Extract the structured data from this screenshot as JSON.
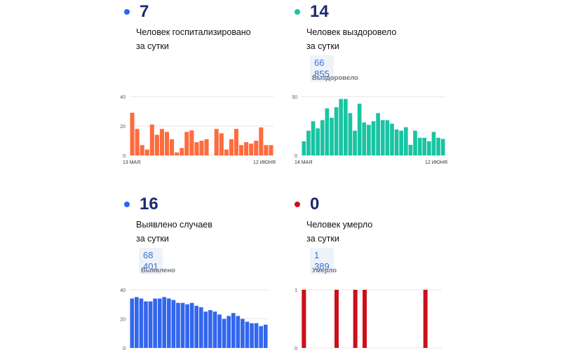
{
  "panels": [
    {
      "id": "hospitalized",
      "number": "7",
      "label_line1": "Человек госпитализировано",
      "label_line2": "за сутки",
      "accent": "#ff6b3d",
      "dot_color": "#2962ff",
      "total": "",
      "total_label": ""
    },
    {
      "id": "recovered",
      "number": "14",
      "label_line1": "Человек выздоровело",
      "label_line2": "за сутки",
      "accent": "#19c4a2",
      "dot_color": "#19c4a2",
      "total": "66 855",
      "total_label": "Выздоровело"
    },
    {
      "id": "detected",
      "number": "16",
      "label_line1": "Выявлено случаев",
      "label_line2": "за сутки",
      "accent": "#3366ee",
      "dot_color": "#2962ff",
      "total": "68 401",
      "total_label": "Выявлено"
    },
    {
      "id": "died",
      "number": "0",
      "label_line1": "Человек умерло",
      "label_line2": "за сутки",
      "accent": "#cc0f1a",
      "dot_color": "#cc0f1a",
      "total": "1 389",
      "total_label": "Умерло"
    }
  ],
  "chart_data": [
    {
      "type": "bar",
      "series_of": "hospitalized",
      "ylim": [
        0,
        40
      ],
      "yticks": [
        "0",
        "20",
        "40"
      ],
      "x_start_label": "13 МАЯ",
      "x_end_label": "12 ИЮНЯ",
      "values": [
        29,
        18,
        7,
        4,
        21,
        14,
        18,
        16,
        11,
        2,
        5,
        16,
        17,
        9,
        10,
        11,
        null,
        18,
        15,
        4,
        11,
        18,
        7,
        9,
        8,
        10,
        19,
        7,
        7
      ]
    },
    {
      "type": "bar",
      "series_of": "recovered",
      "ylim": [
        0,
        50
      ],
      "yticks": [
        "0",
        "50"
      ],
      "x_start_label": "14 МАЯ",
      "x_end_label": "12 ИЮНЯ",
      "values": [
        12,
        21,
        29,
        23,
        30,
        40,
        32,
        41,
        48,
        48,
        36,
        21,
        44,
        28,
        26,
        29,
        36,
        30,
        30,
        27,
        22,
        21,
        24,
        9,
        21,
        15,
        15,
        12,
        20,
        15,
        14
      ]
    },
    {
      "type": "bar",
      "series_of": "detected",
      "ylim": [
        0,
        40
      ],
      "yticks": [
        "0",
        "20",
        "40"
      ],
      "x_start_label": "",
      "x_end_label": "",
      "values": [
        34,
        35,
        34,
        32,
        32,
        34,
        34,
        35,
        34,
        33,
        31,
        31,
        30,
        31,
        29,
        28,
        25,
        26,
        25,
        23,
        20,
        22,
        24,
        22,
        20,
        18,
        17,
        17,
        15,
        16
      ]
    },
    {
      "type": "bar",
      "series_of": "died",
      "ylim": [
        0,
        1
      ],
      "yticks": [
        "0",
        "1"
      ],
      "x_start_label": "",
      "x_end_label": "",
      "values": [
        1,
        0,
        0,
        0,
        0,
        0,
        0,
        1,
        0,
        0,
        0,
        1,
        0,
        1,
        0,
        0,
        0,
        0,
        0,
        0,
        0,
        0,
        0,
        0,
        0,
        0,
        1,
        0,
        0,
        0
      ]
    }
  ]
}
